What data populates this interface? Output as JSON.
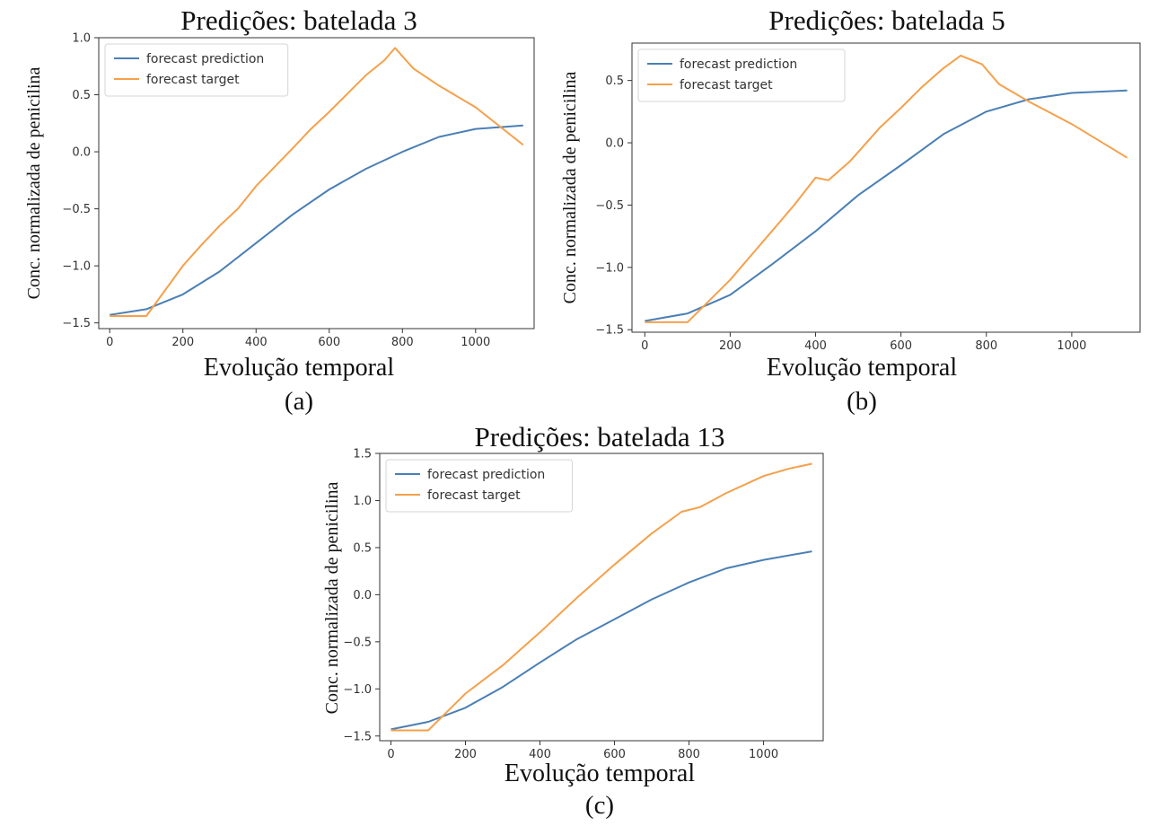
{
  "chart_data": [
    {
      "type": "line",
      "title": "Predições: batelada 3",
      "xlabel": "Evolução temporal",
      "ylabel": "Conc. normalizada de penicilina",
      "caption": "(a)",
      "xlim": [
        -30,
        1160
      ],
      "ylim": [
        -1.55,
        1.0
      ],
      "xticks": [
        0,
        200,
        400,
        600,
        800,
        1000
      ],
      "yticks": [
        -1.5,
        -1.0,
        -0.5,
        0.0,
        0.5,
        1.0
      ],
      "ytick_labels": [
        "−1.5",
        "−1.0",
        "−0.5",
        "0.0",
        "0.5",
        "1.0"
      ],
      "legend": "top-left",
      "series": [
        {
          "name": "forecast prediction",
          "color": "#4a7fb5",
          "x": [
            0,
            100,
            200,
            300,
            400,
            500,
            600,
            700,
            800,
            900,
            1000,
            1130
          ],
          "y": [
            -1.43,
            -1.38,
            -1.25,
            -1.05,
            -0.8,
            -0.55,
            -0.33,
            -0.15,
            0.0,
            0.13,
            0.2,
            0.23
          ]
        },
        {
          "name": "forecast target",
          "color": "#f5a04a",
          "x": [
            0,
            100,
            200,
            250,
            300,
            350,
            400,
            500,
            550,
            600,
            650,
            700,
            750,
            780,
            830,
            900,
            1000,
            1130
          ],
          "y": [
            -1.44,
            -1.44,
            -1.0,
            -0.82,
            -0.65,
            -0.5,
            -0.3,
            0.03,
            0.2,
            0.35,
            0.51,
            0.67,
            0.8,
            0.91,
            0.73,
            0.58,
            0.39,
            0.06
          ]
        }
      ]
    },
    {
      "type": "line",
      "title": "Predições: batelada 5",
      "xlabel": "Evolução temporal",
      "ylabel": "Conc. normalizada de penicilina",
      "caption": "(b)",
      "xlim": [
        -30,
        1160
      ],
      "ylim": [
        -1.52,
        0.8
      ],
      "xticks": [
        0,
        200,
        400,
        600,
        800,
        1000
      ],
      "yticks": [
        -1.5,
        -1.0,
        -0.5,
        0.0,
        0.5
      ],
      "ytick_labels": [
        "−1.5",
        "−1.0",
        "−0.5",
        "0.0",
        "0.5"
      ],
      "legend": "top-left",
      "series": [
        {
          "name": "forecast prediction",
          "color": "#4a7fb5",
          "x": [
            0,
            100,
            200,
            300,
            400,
            500,
            600,
            700,
            800,
            900,
            1000,
            1130
          ],
          "y": [
            -1.43,
            -1.37,
            -1.22,
            -0.97,
            -0.71,
            -0.42,
            -0.18,
            0.07,
            0.25,
            0.35,
            0.4,
            0.42
          ]
        },
        {
          "name": "forecast target",
          "color": "#f5a04a",
          "x": [
            0,
            100,
            200,
            250,
            300,
            350,
            400,
            430,
            480,
            550,
            600,
            650,
            700,
            740,
            790,
            830,
            900,
            1000,
            1130
          ],
          "y": [
            -1.44,
            -1.44,
            -1.1,
            -0.9,
            -0.7,
            -0.5,
            -0.28,
            -0.3,
            -0.15,
            0.12,
            0.28,
            0.45,
            0.6,
            0.7,
            0.63,
            0.47,
            0.33,
            0.15,
            -0.12
          ]
        }
      ]
    },
    {
      "type": "line",
      "title": "Predições: batelada 13",
      "xlabel": "Evolução temporal",
      "ylabel": "Conc. normalizada de penicilina",
      "caption": "(c)",
      "xlim": [
        -30,
        1160
      ],
      "ylim": [
        -1.55,
        1.5
      ],
      "xticks": [
        0,
        200,
        400,
        600,
        800,
        1000
      ],
      "yticks": [
        -1.5,
        -1.0,
        -0.5,
        0.0,
        0.5,
        1.0,
        1.5
      ],
      "ytick_labels": [
        "−1.5",
        "−1.0",
        "−0.5",
        "0.0",
        "0.5",
        "1.0",
        "1.5"
      ],
      "legend": "top-left",
      "series": [
        {
          "name": "forecast prediction",
          "color": "#4a7fb5",
          "x": [
            0,
            100,
            200,
            300,
            400,
            500,
            600,
            700,
            800,
            900,
            1000,
            1130
          ],
          "y": [
            -1.43,
            -1.35,
            -1.2,
            -0.98,
            -0.72,
            -0.47,
            -0.26,
            -0.05,
            0.13,
            0.28,
            0.37,
            0.46
          ]
        },
        {
          "name": "forecast target",
          "color": "#f5a04a",
          "x": [
            0,
            100,
            200,
            300,
            400,
            500,
            600,
            700,
            780,
            830,
            900,
            1000,
            1070,
            1130
          ],
          "y": [
            -1.44,
            -1.44,
            -1.05,
            -0.75,
            -0.4,
            -0.03,
            0.32,
            0.65,
            0.88,
            0.93,
            1.08,
            1.26,
            1.34,
            1.39
          ]
        }
      ]
    }
  ]
}
